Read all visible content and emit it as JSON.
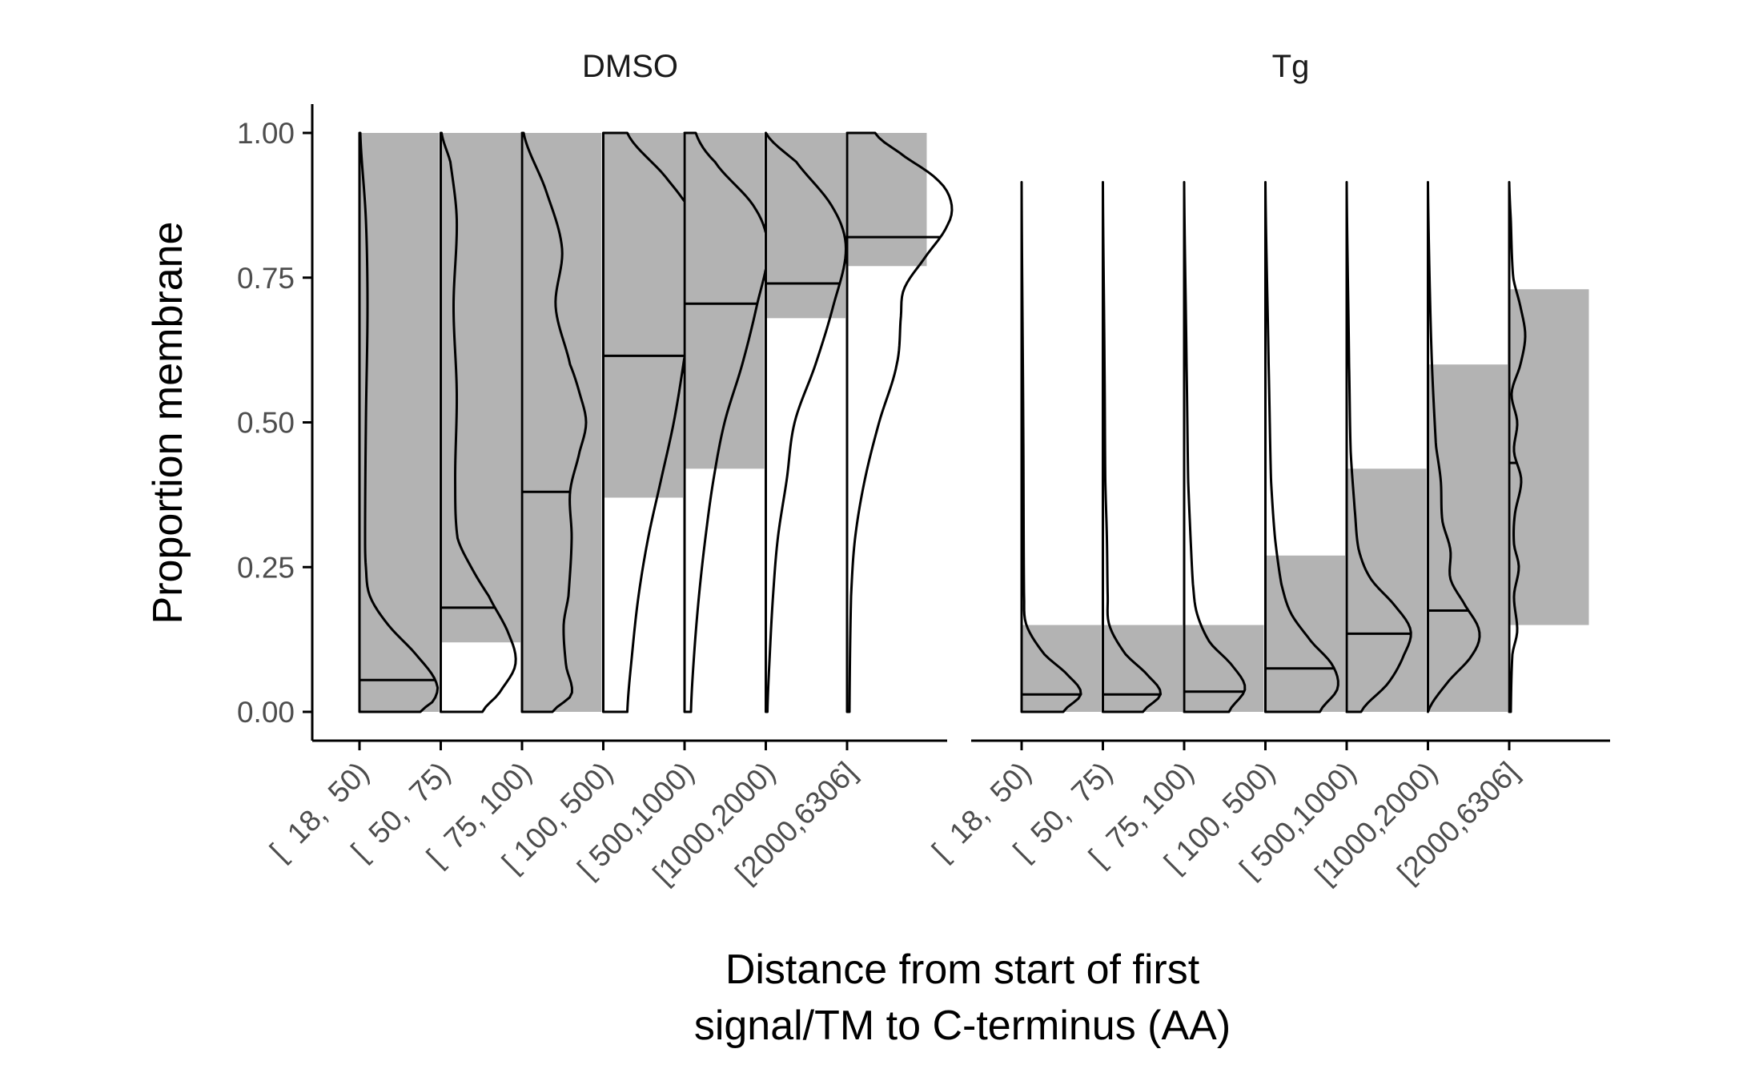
{
  "chart_data": {
    "type": "violin",
    "subtype": "half-violin with median line and shaded interquartile band",
    "ylabel": "Proportion membrane",
    "xlabel_lines": [
      "Distance from start of first",
      "signal/TM to C-terminus (AA)"
    ],
    "ylim": [
      0,
      1
    ],
    "yticks": [
      "0.00",
      "0.25",
      "0.50",
      "0.75",
      "1.00"
    ],
    "categories": [
      "[  18,  50)",
      "[  50,  75)",
      "[  75, 100)",
      "[ 100, 500)",
      "[ 500,1000)",
      "[1000,2000)",
      "[2000,6306]"
    ],
    "grid": false,
    "legend": "none",
    "colors": {
      "fill": "#b3b3b3",
      "line": "#000000",
      "axis": "#000000",
      "tick_text": "#4d4d4d"
    },
    "panels": [
      {
        "name": "DMSO",
        "groups": [
          {
            "median": 0.055,
            "q1": 0.0,
            "q3": 1.0,
            "max": 1.0,
            "dens": [
              [
                0.0,
                0.76
              ],
              [
                0.02,
                0.93
              ],
              [
                0.05,
                0.96
              ],
              [
                0.1,
                0.7
              ],
              [
                0.15,
                0.36
              ],
              [
                0.2,
                0.13
              ],
              [
                0.25,
                0.08
              ],
              [
                0.3,
                0.07
              ],
              [
                0.5,
                0.08
              ],
              [
                0.7,
                0.1
              ],
              [
                0.85,
                0.08
              ],
              [
                1.0,
                0.01
              ]
            ]
          },
          {
            "median": 0.18,
            "q1": 0.12,
            "q3": 1.0,
            "max": 1.0,
            "dens": [
              [
                0.0,
                0.52
              ],
              [
                0.03,
                0.72
              ],
              [
                0.08,
                0.93
              ],
              [
                0.13,
                0.86
              ],
              [
                0.2,
                0.6
              ],
              [
                0.25,
                0.38
              ],
              [
                0.3,
                0.21
              ],
              [
                0.4,
                0.18
              ],
              [
                0.55,
                0.2
              ],
              [
                0.7,
                0.16
              ],
              [
                0.85,
                0.2
              ],
              [
                0.95,
                0.12
              ],
              [
                1.0,
                0.01
              ]
            ]
          },
          {
            "median": 0.38,
            "q1": 0.0,
            "q3": 1.0,
            "max": 1.0,
            "dens": [
              [
                0.0,
                0.38
              ],
              [
                0.03,
                0.62
              ],
              [
                0.08,
                0.55
              ],
              [
                0.15,
                0.52
              ],
              [
                0.2,
                0.58
              ],
              [
                0.3,
                0.62
              ],
              [
                0.38,
                0.6
              ],
              [
                0.45,
                0.72
              ],
              [
                0.5,
                0.8
              ],
              [
                0.55,
                0.72
              ],
              [
                0.6,
                0.6
              ],
              [
                0.7,
                0.42
              ],
              [
                0.8,
                0.5
              ],
              [
                0.9,
                0.3
              ],
              [
                1.0,
                0.02
              ]
            ]
          },
          {
            "median": 0.615,
            "q1": 0.37,
            "q3": 1.0,
            "max": 1.0,
            "dens": [
              [
                0.0,
                0.3
              ],
              [
                0.1,
                0.36
              ],
              [
                0.2,
                0.44
              ],
              [
                0.3,
                0.56
              ],
              [
                0.4,
                0.72
              ],
              [
                0.5,
                0.88
              ],
              [
                0.6,
                1.0
              ],
              [
                0.7,
                1.1
              ],
              [
                0.78,
                1.2
              ],
              [
                0.85,
                1.14
              ],
              [
                0.92,
                0.8
              ],
              [
                1.0,
                0.3
              ]
            ]
          },
          {
            "median": 0.705,
            "q1": 0.42,
            "q3": 1.0,
            "max": 1.0,
            "dens": [
              [
                0.0,
                0.08
              ],
              [
                0.1,
                0.12
              ],
              [
                0.2,
                0.18
              ],
              [
                0.3,
                0.26
              ],
              [
                0.4,
                0.36
              ],
              [
                0.5,
                0.5
              ],
              [
                0.6,
                0.72
              ],
              [
                0.7,
                0.9
              ],
              [
                0.8,
                1.04
              ],
              [
                0.87,
                0.88
              ],
              [
                0.95,
                0.38
              ],
              [
                1.0,
                0.14
              ]
            ]
          },
          {
            "median": 0.74,
            "q1": 0.68,
            "q3": 1.0,
            "max": 1.0,
            "dens": [
              [
                0.0,
                0.02
              ],
              [
                0.1,
                0.05
              ],
              [
                0.2,
                0.09
              ],
              [
                0.3,
                0.15
              ],
              [
                0.4,
                0.26
              ],
              [
                0.5,
                0.36
              ],
              [
                0.6,
                0.62
              ],
              [
                0.7,
                0.84
              ],
              [
                0.8,
                1.0
              ],
              [
                0.87,
                0.84
              ],
              [
                0.95,
                0.38
              ],
              [
                1.0,
                0.0
              ]
            ]
          },
          {
            "median": 0.82,
            "q1": 0.77,
            "q3": 1.0,
            "max": 1.0,
            "dens": [
              [
                0.0,
                0.03
              ],
              [
                0.2,
                0.05
              ],
              [
                0.3,
                0.1
              ],
              [
                0.4,
                0.22
              ],
              [
                0.5,
                0.4
              ],
              [
                0.6,
                0.62
              ],
              [
                0.68,
                0.67
              ],
              [
                0.73,
                0.71
              ],
              [
                0.78,
                0.95
              ],
              [
                0.84,
                1.25
              ],
              [
                0.88,
                1.3
              ],
              [
                0.92,
                1.12
              ],
              [
                0.97,
                0.62
              ],
              [
                1.0,
                0.35
              ]
            ]
          }
        ]
      },
      {
        "name": "Tg",
        "groups": [
          {
            "median": 0.03,
            "q1": 0.0,
            "q3": 0.15,
            "max": 0.915,
            "dens": [
              [
                0.0,
                0.52
              ],
              [
                0.03,
                0.74
              ],
              [
                0.06,
                0.6
              ],
              [
                0.1,
                0.28
              ],
              [
                0.15,
                0.06
              ],
              [
                0.2,
                0.03
              ],
              [
                0.5,
                0.02
              ],
              [
                0.915,
                0.0
              ]
            ]
          },
          {
            "median": 0.03,
            "q1": 0.0,
            "q3": 0.15,
            "max": 0.915,
            "dens": [
              [
                0.0,
                0.5
              ],
              [
                0.03,
                0.72
              ],
              [
                0.06,
                0.58
              ],
              [
                0.1,
                0.28
              ],
              [
                0.15,
                0.08
              ],
              [
                0.2,
                0.06
              ],
              [
                0.3,
                0.05
              ],
              [
                0.4,
                0.03
              ],
              [
                0.6,
                0.02
              ],
              [
                0.915,
                0.0
              ]
            ]
          },
          {
            "median": 0.035,
            "q1": 0.0,
            "q3": 0.15,
            "max": 0.915,
            "dens": [
              [
                0.0,
                0.56
              ],
              [
                0.04,
                0.76
              ],
              [
                0.08,
                0.6
              ],
              [
                0.12,
                0.32
              ],
              [
                0.17,
                0.16
              ],
              [
                0.22,
                0.11
              ],
              [
                0.3,
                0.08
              ],
              [
                0.4,
                0.05
              ],
              [
                0.6,
                0.03
              ],
              [
                0.915,
                0.0
              ]
            ]
          },
          {
            "median": 0.075,
            "q1": 0.0,
            "q3": 0.27,
            "max": 0.915,
            "dens": [
              [
                0.0,
                0.68
              ],
              [
                0.04,
                0.9
              ],
              [
                0.08,
                0.84
              ],
              [
                0.12,
                0.58
              ],
              [
                0.17,
                0.32
              ],
              [
                0.22,
                0.2
              ],
              [
                0.3,
                0.12
              ],
              [
                0.4,
                0.07
              ],
              [
                0.6,
                0.04
              ],
              [
                0.915,
                0.0
              ]
            ]
          },
          {
            "median": 0.135,
            "q1": 0.0,
            "q3": 0.42,
            "max": 0.915,
            "dens": [
              [
                0.0,
                0.18
              ],
              [
                0.05,
                0.52
              ],
              [
                0.1,
                0.72
              ],
              [
                0.14,
                0.8
              ],
              [
                0.18,
                0.62
              ],
              [
                0.23,
                0.3
              ],
              [
                0.28,
                0.15
              ],
              [
                0.35,
                0.1
              ],
              [
                0.45,
                0.05
              ],
              [
                0.6,
                0.03
              ],
              [
                0.915,
                0.0
              ]
            ]
          },
          {
            "median": 0.175,
            "q1": 0.0,
            "q3": 0.6,
            "max": 0.915,
            "dens": [
              [
                0.0,
                0.0
              ],
              [
                0.05,
                0.24
              ],
              [
                0.1,
                0.56
              ],
              [
                0.14,
                0.64
              ],
              [
                0.19,
                0.44
              ],
              [
                0.23,
                0.28
              ],
              [
                0.28,
                0.28
              ],
              [
                0.33,
                0.18
              ],
              [
                0.4,
                0.16
              ],
              [
                0.46,
                0.1
              ],
              [
                0.6,
                0.05
              ],
              [
                0.75,
                0.02
              ],
              [
                0.915,
                0.0
              ]
            ]
          },
          {
            "median": 0.43,
            "q1": 0.15,
            "q3": 0.73,
            "max": 0.915,
            "dens": [
              [
                0.0,
                0.02
              ],
              [
                0.1,
                0.04
              ],
              [
                0.14,
                0.1
              ],
              [
                0.2,
                0.06
              ],
              [
                0.25,
                0.12
              ],
              [
                0.29,
                0.06
              ],
              [
                0.34,
                0.07
              ],
              [
                0.4,
                0.15
              ],
              [
                0.45,
                0.06
              ],
              [
                0.5,
                0.1
              ],
              [
                0.55,
                0.03
              ],
              [
                0.6,
                0.14
              ],
              [
                0.65,
                0.2
              ],
              [
                0.7,
                0.14
              ],
              [
                0.75,
                0.05
              ],
              [
                0.85,
                0.02
              ],
              [
                0.915,
                0.0
              ]
            ]
          }
        ]
      }
    ]
  }
}
